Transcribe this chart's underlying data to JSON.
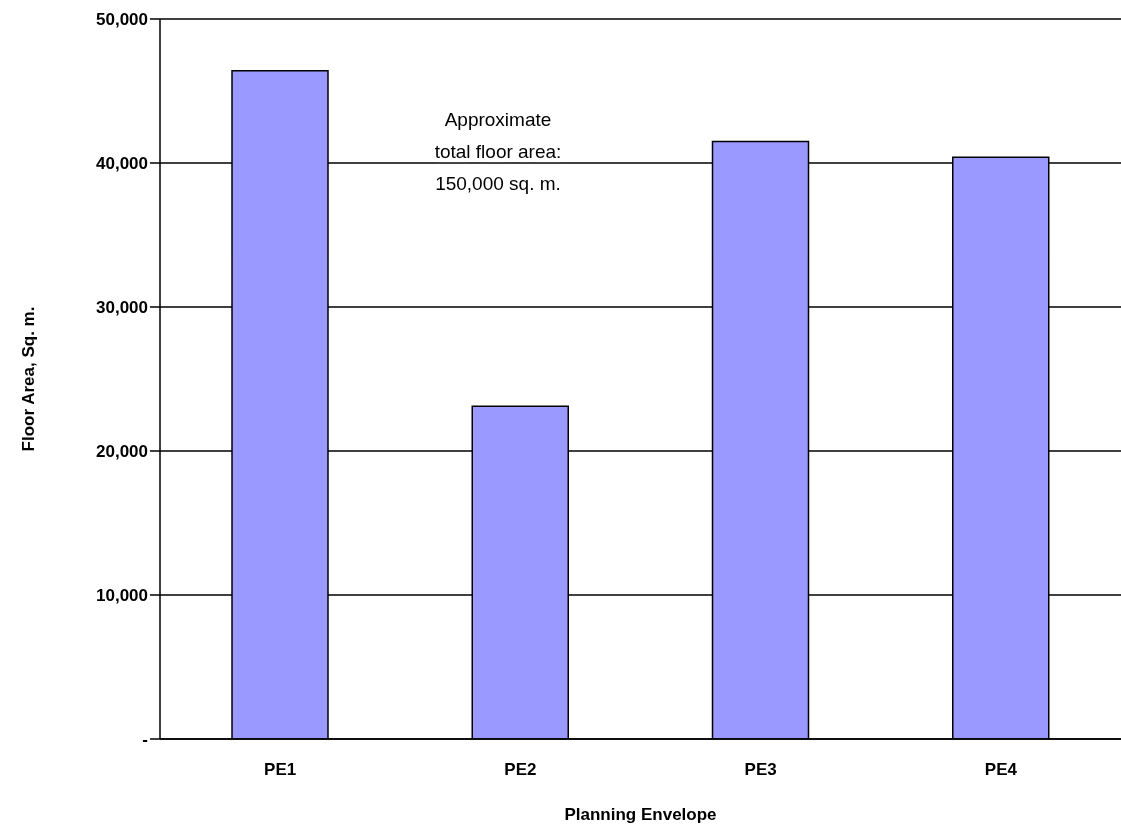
{
  "chart_data": {
    "type": "bar",
    "xlabel": "Planning Envelope",
    "ylabel": "Floor Area, Sq. m.",
    "categories": [
      "PE1",
      "PE2",
      "PE3",
      "PE4"
    ],
    "values": [
      46400,
      23100,
      41500,
      40400
    ],
    "color": "#9999ff",
    "ylim": [
      0,
      50000
    ],
    "yticks": [
      {
        "value": 0,
        "label": "-"
      },
      {
        "value": 10000,
        "label": "10,000"
      },
      {
        "value": 20000,
        "label": "20,000"
      },
      {
        "value": 30000,
        "label": "30,000"
      },
      {
        "value": 40000,
        "label": "40,000"
      },
      {
        "value": 50000,
        "label": "50,000"
      }
    ],
    "grid": "y",
    "legend": false,
    "annotations": [
      "Approximate\ntotal floor area:\n150,000 sq. m."
    ]
  }
}
